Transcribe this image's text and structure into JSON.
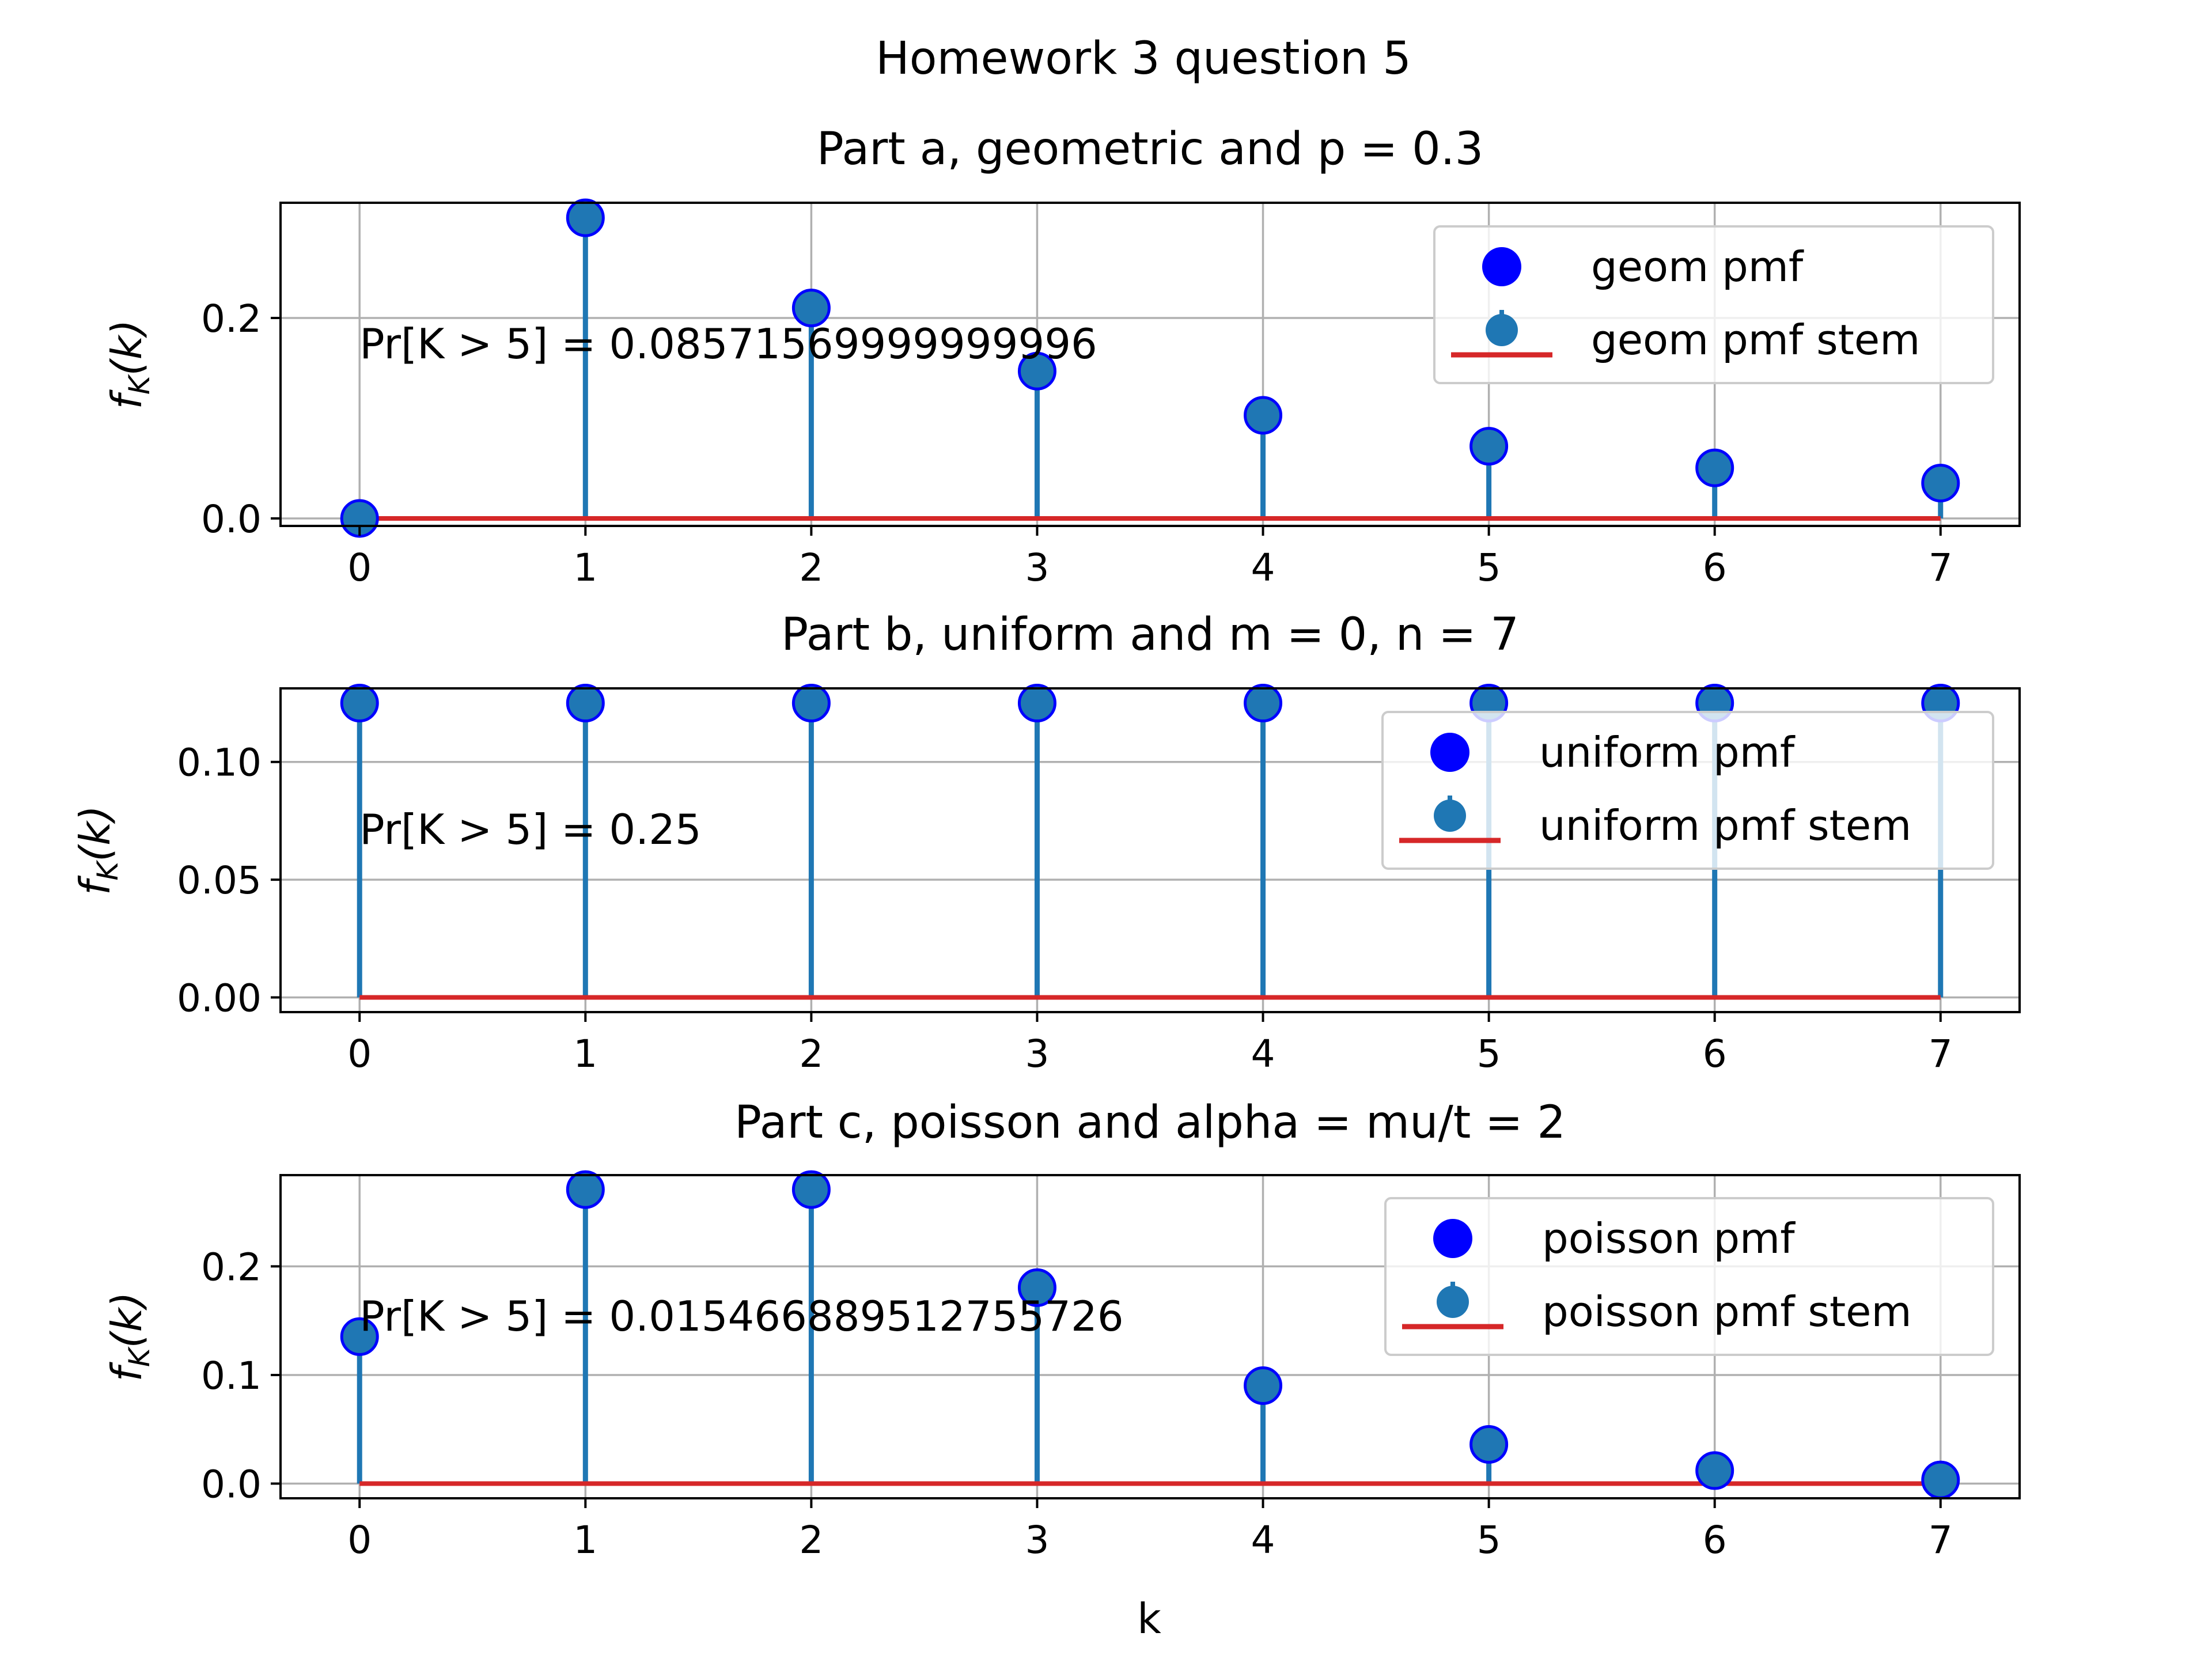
{
  "chart_data": {
    "title": "Homework 3 question 5",
    "xlabel": "k",
    "ylabel": {
      "base": "f",
      "sub": "K",
      "arg": "(k)"
    },
    "colors": {
      "stem": "#1f77b4",
      "baseline": "#d62728",
      "marker_edge": "#0000ff",
      "pmf_marker": "#0000ff",
      "grid": "#b0b0b0"
    },
    "subplots": [
      {
        "type": "scatter",
        "title": "Part a, geometric and p = 0.3",
        "x": [
          0,
          1,
          2,
          3,
          4,
          5,
          6,
          7
        ],
        "values": [
          0.0,
          0.3,
          0.21,
          0.147,
          0.1029,
          0.07203,
          0.05042,
          0.03529
        ],
        "series": [
          {
            "name": "geom pmf"
          },
          {
            "name": "geom pmf stem"
          }
        ],
        "annotation": "Pr[K > 5] = 0.08571569999999996",
        "xlim": [
          -0.35,
          7.35
        ],
        "ylim": [
          -0.0075,
          0.315
        ],
        "xticks": [
          "0",
          "1",
          "2",
          "3",
          "4",
          "5",
          "6",
          "7"
        ],
        "yticks": [
          {
            "value": 0.0,
            "label": "0.0"
          },
          {
            "value": 0.2,
            "label": "0.2"
          }
        ],
        "grid": true,
        "legend": "upper-right"
      },
      {
        "type": "scatter",
        "title": "Part b, uniform and m = 0, n = 7",
        "x": [
          0,
          1,
          2,
          3,
          4,
          5,
          6,
          7
        ],
        "values": [
          0.125,
          0.125,
          0.125,
          0.125,
          0.125,
          0.125,
          0.125,
          0.125
        ],
        "series": [
          {
            "name": "uniform pmf"
          },
          {
            "name": "uniform pmf stem"
          }
        ],
        "annotation": "Pr[K > 5] = 0.25",
        "xlim": [
          -0.35,
          7.35
        ],
        "ylim": [
          -0.00625,
          0.13125
        ],
        "xticks": [
          "0",
          "1",
          "2",
          "3",
          "4",
          "5",
          "6",
          "7"
        ],
        "yticks": [
          {
            "value": 0.0,
            "label": "0.00"
          },
          {
            "value": 0.05,
            "label": "0.05"
          },
          {
            "value": 0.1,
            "label": "0.10"
          }
        ],
        "grid": true,
        "legend": "upper-right"
      },
      {
        "type": "scatter",
        "title": "Part c, poisson and alpha = mu/t = 2",
        "x": [
          0,
          1,
          2,
          3,
          4,
          5,
          6,
          7
        ],
        "values": [
          0.1353,
          0.2707,
          0.2707,
          0.1804,
          0.0902,
          0.0361,
          0.012,
          0.0034
        ],
        "series": [
          {
            "name": "poisson pmf"
          },
          {
            "name": "poisson pmf stem"
          }
        ],
        "annotation": "Pr[K > 5] = 0.015466889512755726",
        "xlim": [
          -0.35,
          7.35
        ],
        "ylim": [
          -0.0135,
          0.284
        ],
        "xticks": [
          "0",
          "1",
          "2",
          "3",
          "4",
          "5",
          "6",
          "7"
        ],
        "yticks": [
          {
            "value": 0.0,
            "label": "0.0"
          },
          {
            "value": 0.1,
            "label": "0.1"
          },
          {
            "value": 0.2,
            "label": "0.2"
          }
        ],
        "grid": true,
        "legend": "upper-right"
      }
    ]
  }
}
